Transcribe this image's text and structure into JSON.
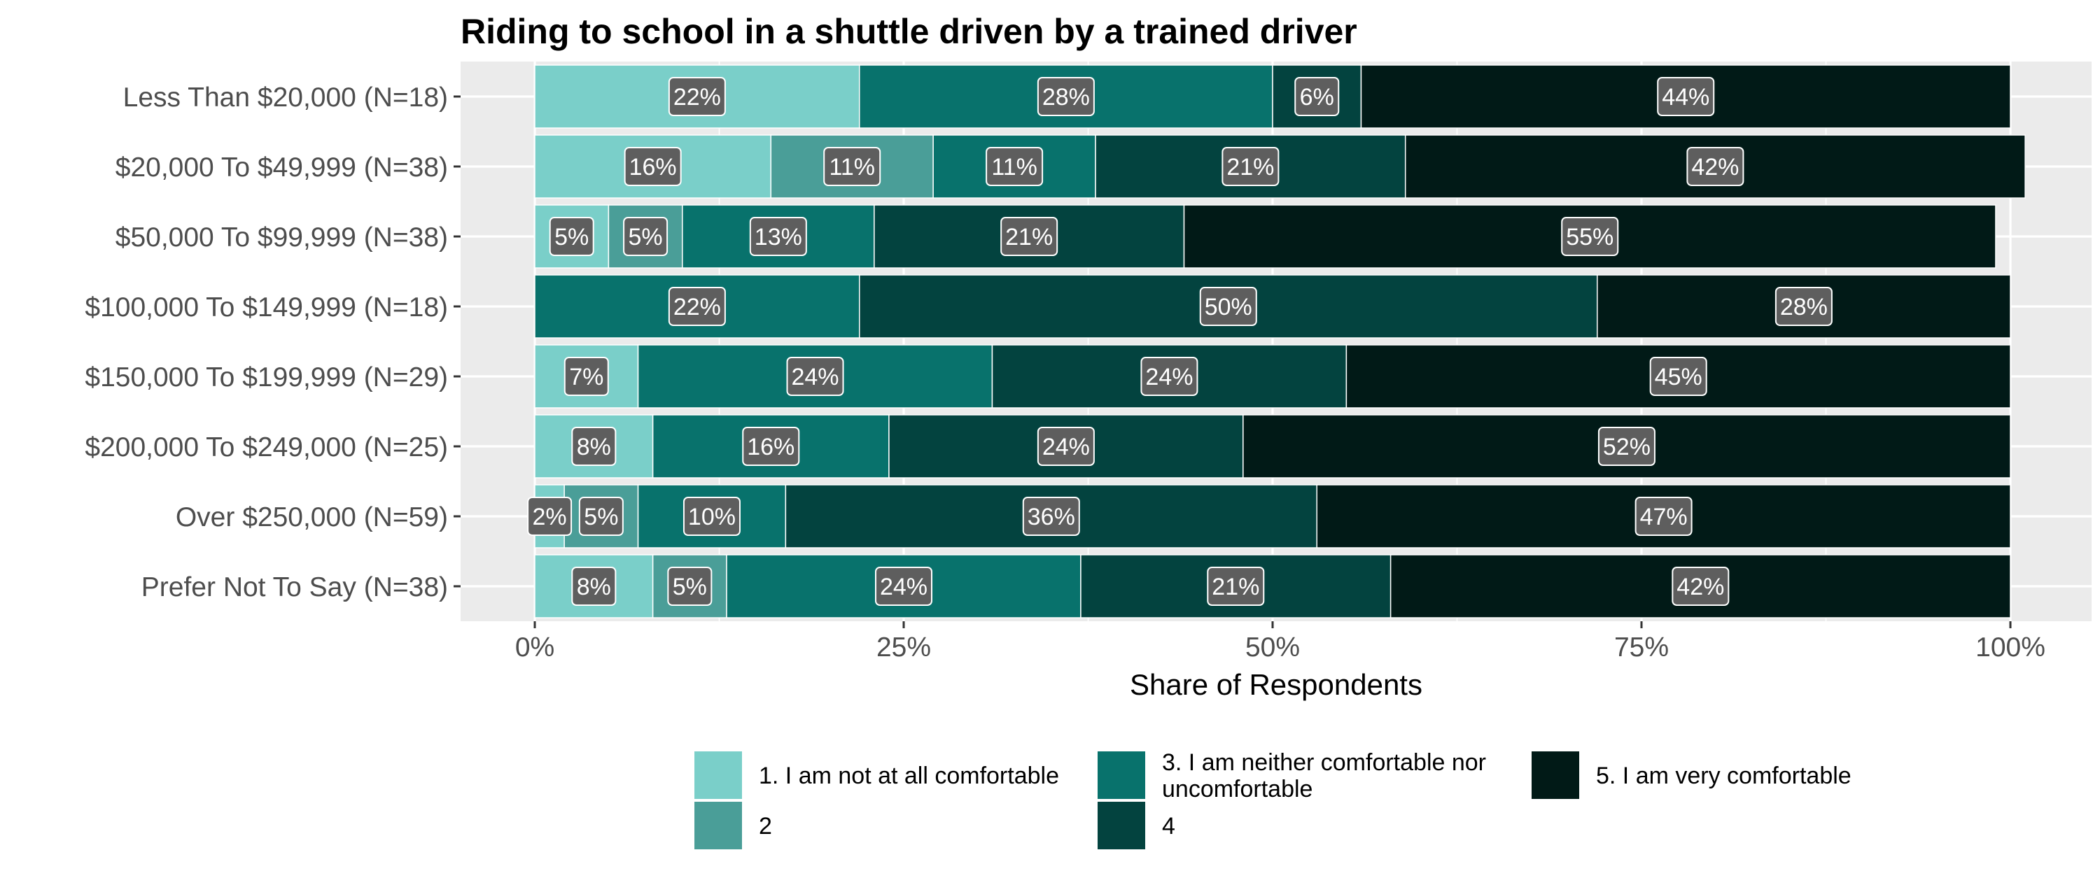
{
  "chart_data": {
    "type": "bar",
    "orientation": "horizontal",
    "stacked": true,
    "title": "Riding to school in a shuttle driven by a trained driver",
    "xlabel": "Share of Respondents",
    "ylabel": "",
    "xlim": [
      0,
      1
    ],
    "x_ticks": [
      "0%",
      "25%",
      "50%",
      "75%",
      "100%"
    ],
    "x_tick_values": [
      0,
      0.25,
      0.5,
      0.75,
      1
    ],
    "grid": true,
    "legend_position": "bottom",
    "categories": [
      "Less Than $20,000 (N=18)",
      "$20,000 To $49,999 (N=38)",
      "$50,000 To $99,999 (N=38)",
      "$100,000 To $149,999 (N=18)",
      "$150,000 To $199,999 (N=29)",
      "$200,000 To $249,000 (N=25)",
      "Over $250,000 (N=59)",
      "Prefer Not To Say (N=38)"
    ],
    "series": [
      {
        "name": "1. I am not at all comfortable",
        "color": "#7ACFC9",
        "values": [
          0.22,
          0.16,
          0.05,
          0,
          0.07,
          0.08,
          0.02,
          0.08
        ],
        "labels": [
          "22%",
          "16%",
          "5%",
          "",
          "7%",
          "8%",
          "2%",
          "8%"
        ]
      },
      {
        "name": "2",
        "color": "#4A9E98",
        "values": [
          0,
          0.11,
          0.05,
          0,
          0,
          0,
          0.05,
          0.05
        ],
        "labels": [
          "",
          "11%",
          "5%",
          "",
          "",
          "",
          "5%",
          "5%"
        ]
      },
      {
        "name": "3. I am neither comfortable nor uncomfortable",
        "color": "#08726C",
        "values": [
          0.28,
          0.11,
          0.13,
          0.22,
          0.24,
          0.16,
          0.1,
          0.24
        ],
        "labels": [
          "28%",
          "11%",
          "13%",
          "22%",
          "24%",
          "16%",
          "10%",
          "24%"
        ]
      },
      {
        "name": "4",
        "color": "#03433F",
        "values": [
          0.06,
          0.21,
          0.21,
          0.5,
          0.24,
          0.24,
          0.36,
          0.21
        ],
        "labels": [
          "6%",
          "21%",
          "21%",
          "50%",
          "24%",
          "24%",
          "36%",
          "21%"
        ]
      },
      {
        "name": "5. I am very comfortable",
        "color": "#011A17",
        "values": [
          0.44,
          0.42,
          0.55,
          0.28,
          0.45,
          0.52,
          0.47,
          0.42
        ],
        "labels": [
          "44%",
          "42%",
          "55%",
          "28%",
          "45%",
          "52%",
          "47%",
          "42%"
        ]
      }
    ],
    "legend": [
      {
        "label_lines": [
          "1. I am not at all comfortable"
        ],
        "color": "#7ACFC9"
      },
      {
        "label_lines": [
          "2"
        ],
        "color": "#4A9E98"
      },
      {
        "label_lines": [
          "3. I am neither comfortable nor",
          "uncomfortable"
        ],
        "color": "#08726C"
      },
      {
        "label_lines": [
          "4"
        ],
        "color": "#03433F"
      },
      {
        "label_lines": [
          "5. I am very comfortable"
        ],
        "color": "#011A17"
      }
    ]
  }
}
